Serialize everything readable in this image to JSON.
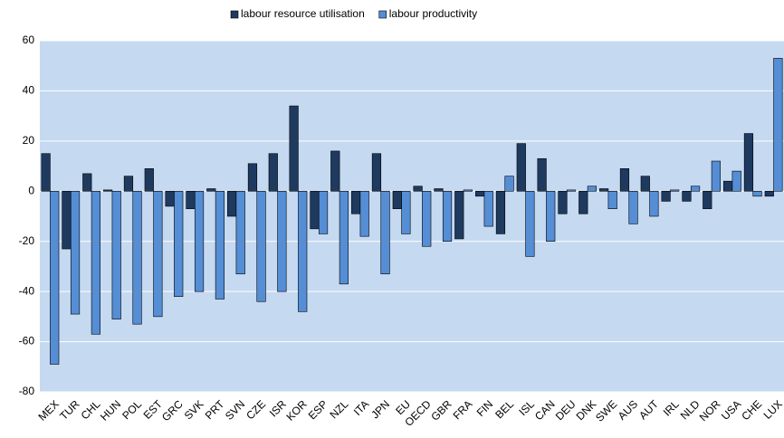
{
  "chart_data": {
    "type": "bar",
    "categories": [
      "MEX",
      "TUR",
      "CHL",
      "HUN",
      "POL",
      "EST",
      "GRC",
      "SVK",
      "PRT",
      "SVN",
      "CZE",
      "ISR",
      "KOR",
      "ESP",
      "NZL",
      "ITA",
      "JPN",
      "EU",
      "OECD",
      "GBR",
      "FRA",
      "FIN",
      "BEL",
      "ISL",
      "CAN",
      "DEU",
      "DNK",
      "SWE",
      "AUS",
      "AUT",
      "IRL",
      "NLD",
      "NOR",
      "USA",
      "CHE",
      "LUX"
    ],
    "series": [
      {
        "name": "labour resource utilisation",
        "color": "#1f3a5f",
        "values": [
          15,
          -23,
          7,
          0.5,
          6,
          9,
          -6,
          -7,
          1,
          -10,
          11,
          15,
          34,
          -15,
          16,
          -9,
          15,
          -7,
          2,
          1,
          -19,
          -2,
          -17,
          19,
          13,
          -9,
          -9,
          1,
          9,
          6,
          -4,
          -4,
          -7,
          4,
          23,
          -2
        ]
      },
      {
        "name": "labour productivity",
        "color": "#558ed5",
        "values": [
          -69,
          -49,
          -57,
          -51,
          -53,
          -50,
          -42,
          -40,
          -43,
          -33,
          -44,
          -40,
          -48,
          -17,
          -37,
          -18,
          -33,
          -17,
          -22,
          -20,
          0.5,
          -14,
          6,
          -26,
          -20,
          0.5,
          2,
          -7,
          -13,
          -10,
          0.5,
          2,
          12,
          8,
          -2,
          53
        ]
      }
    ],
    "ylim": [
      -80,
      60
    ],
    "yticks": [
      -80,
      -60,
      -40,
      -20,
      0,
      20,
      40,
      60
    ],
    "grid": true,
    "legend": "top",
    "background": "#c5d9f1"
  }
}
